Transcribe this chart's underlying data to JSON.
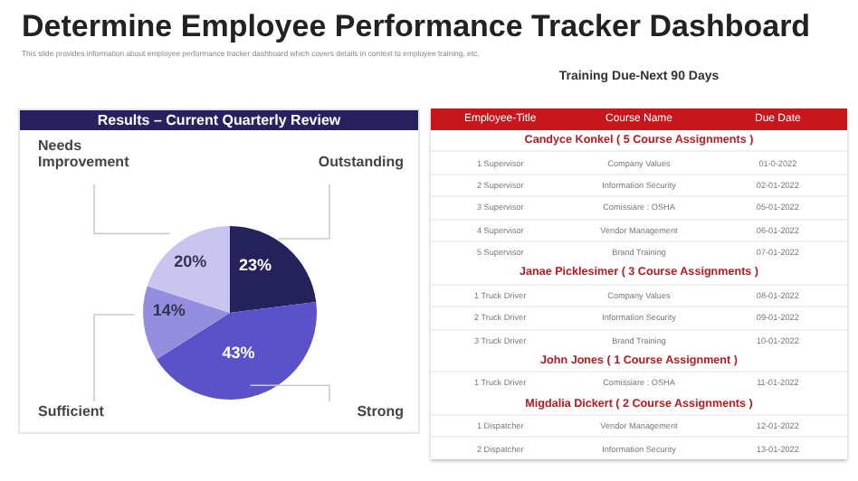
{
  "chart_data": [
    {
      "type": "pie",
      "title": "Determine Employee Performance Tracker Dashboard",
      "subtitle": "This slide provides information about employee performance tracker dashboard which covers details in context to employee training, etc.",
      "annotations": [
        "Results – Current Quarterly Review"
      ],
      "categories": [
        "Outstanding",
        "Strong",
        "Sufficient",
        "Needs Improvement"
      ],
      "values": [
        23,
        43,
        14,
        20
      ],
      "colors": [
        "#25215a",
        "#5b52c9",
        "#958ede",
        "#c9c5ee"
      ],
      "value_labels": [
        "23%",
        "43%",
        "14%",
        "20%"
      ]
    },
    {
      "type": "other",
      "title": "Training Due-Next 90 Days",
      "categories": [
        "Employee-Title",
        "Course Name",
        "Due Date"
      ],
      "cell_labels": [
        [
          "Candyce Konkel ( 5 Course Assignments )"
        ],
        [
          "1  Supervisor",
          "Company Values",
          "01-0-2022"
        ],
        [
          "2  Supervisor",
          "Information Security",
          "02-01-2022"
        ],
        [
          "3  Supervisor",
          "Comissiare : OSHA",
          "05-01-2022"
        ],
        [
          "4  Supervisor",
          "Vendor Management",
          "06-01-2022"
        ],
        [
          "5  Supervisor",
          "Brand Training",
          "07-01-2022"
        ],
        [
          "Janae Picklesimer ( 3 Course Assignments )"
        ],
        [
          "1 Truck Driver",
          "Company Values",
          "08-01-2022"
        ],
        [
          "2 Truck Driver",
          "Information Security",
          "09-01-2022"
        ],
        [
          "3 Truck Driver",
          "Brand Training",
          "10-01-2022"
        ],
        [
          "John Jones ( 1 Course Assignment )"
        ],
        [
          "1 Truck Driver",
          "Comissiare : OSHA",
          "11-01-2022"
        ],
        [
          "Migdalia Dickert ( 2 Course Assignments )"
        ],
        [
          "1 Dispatcher",
          "Vendor Management",
          "12-01-2022"
        ],
        [
          "2 Dispatcher",
          "Information Security",
          "13-01-2022"
        ]
      ]
    }
  ]
}
